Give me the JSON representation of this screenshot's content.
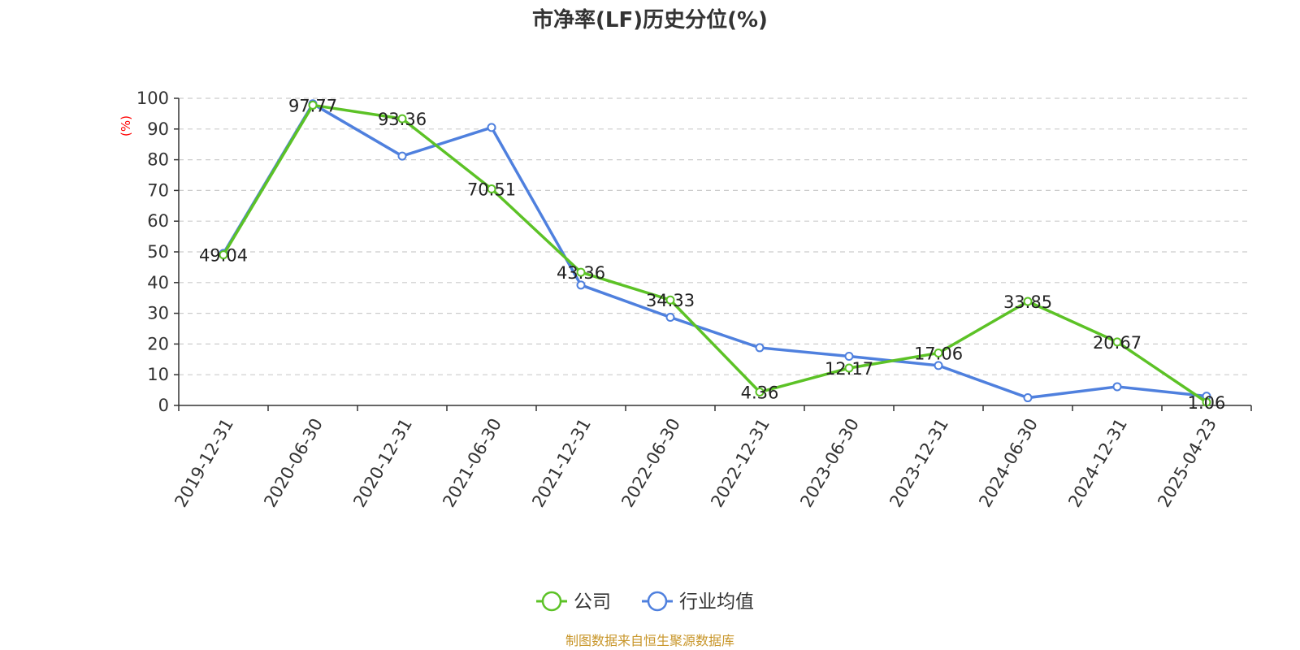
{
  "chart_data": {
    "type": "line",
    "title": "市净率(LF)历史分位(%)",
    "xlabel": "",
    "ylabel": "(%)",
    "ylim": [
      0,
      100
    ],
    "yticks": [
      0,
      10,
      20,
      30,
      40,
      50,
      60,
      70,
      80,
      90,
      100
    ],
    "categories": [
      "2019-12-31",
      "2020-06-30",
      "2020-12-31",
      "2021-06-30",
      "2021-12-31",
      "2022-06-30",
      "2022-12-31",
      "2023-06-30",
      "2023-12-31",
      "2024-06-30",
      "2024-12-31",
      "2025-04-23"
    ],
    "grid": true,
    "legend_position": "bottom",
    "series": [
      {
        "name": "公司",
        "color": "#5cc226",
        "values": [
          49.04,
          97.77,
          93.36,
          70.51,
          43.36,
          34.33,
          4.36,
          12.17,
          17.06,
          33.85,
          20.67,
          1.06
        ],
        "data_labels": [
          "49.04",
          "97.77",
          "93.36",
          "70.51",
          "43.36",
          "34.33",
          "4.36",
          "12.17",
          "17.06",
          "33.85",
          "20.67",
          "1.06"
        ]
      },
      {
        "name": "行业均值",
        "color": "#4f80de",
        "values": [
          49.5,
          98.2,
          81.2,
          90.5,
          39.2,
          28.7,
          18.8,
          16.0,
          13.0,
          2.5,
          6.1,
          3.0
        ]
      }
    ]
  },
  "footer": {
    "source": "制图数据来自恒生聚源数据库",
    "source_color": "#c8962a"
  }
}
